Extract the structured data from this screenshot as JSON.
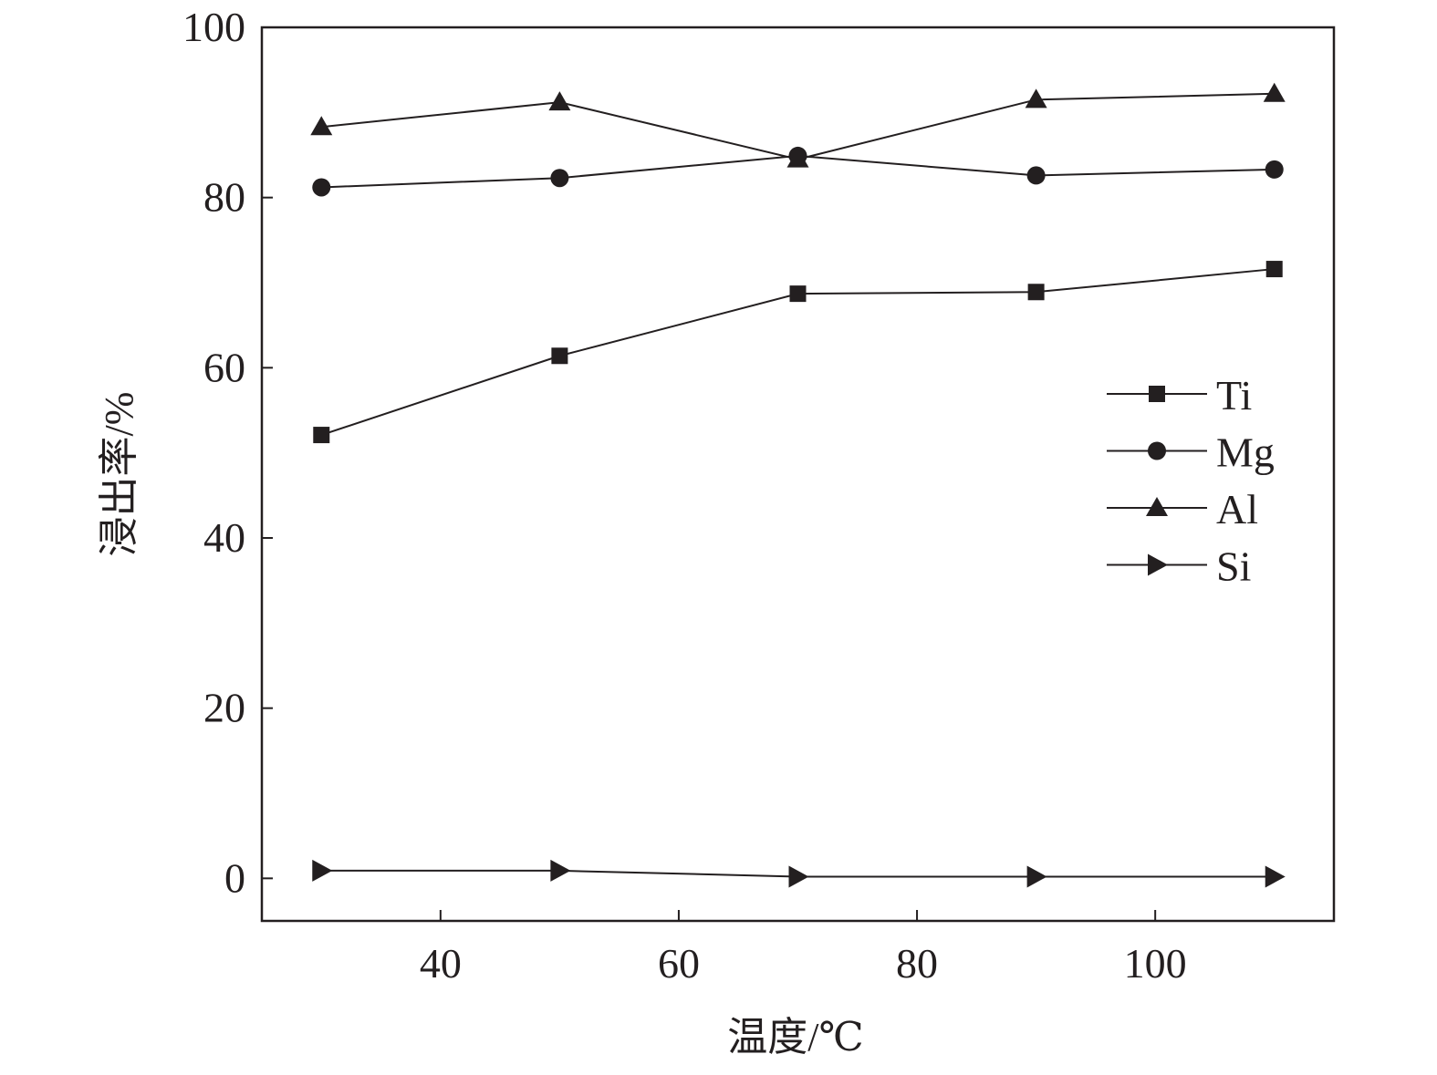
{
  "chart_data": {
    "type": "line",
    "title": "",
    "xlabel": "温度/℃",
    "ylabel": "浸出率/%",
    "xlim": [
      25,
      115
    ],
    "ylim": [
      -5,
      100
    ],
    "xticks": [
      40,
      60,
      80,
      100
    ],
    "yticks": [
      0,
      20,
      40,
      60,
      80,
      100
    ],
    "grid": false,
    "legend_position": "center-right",
    "x": [
      30,
      50,
      70,
      90,
      110
    ],
    "series": [
      {
        "name": "Ti",
        "marker": "square",
        "values": [
          52.1,
          61.4,
          68.7,
          68.9,
          71.6
        ]
      },
      {
        "name": "Mg",
        "marker": "circle",
        "values": [
          81.2,
          82.3,
          84.9,
          82.6,
          83.3
        ]
      },
      {
        "name": "Al",
        "marker": "triangle-up",
        "values": [
          88.3,
          91.2,
          84.5,
          91.5,
          92.2
        ]
      },
      {
        "name": "Si",
        "marker": "triangle-right",
        "values": [
          0.9,
          0.9,
          0.2,
          0.2,
          0.2
        ]
      }
    ],
    "colors": {
      "line": "#231f20"
    }
  }
}
